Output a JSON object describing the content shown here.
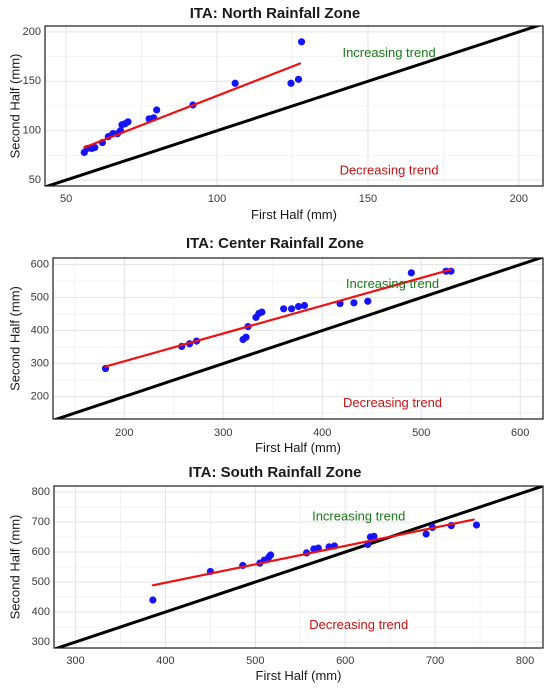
{
  "chart_data": [
    {
      "type": "scatter",
      "title": "ITA: North Rainfall Zone",
      "xlabel": "First Half (mm)",
      "ylabel": "Second Half (mm)",
      "xlim": [
        43,
        208
      ],
      "ylim": [
        44,
        206
      ],
      "xticks": [
        50,
        100,
        150,
        200
      ],
      "yticks": [
        50,
        100,
        150,
        200
      ],
      "grid": true,
      "points": {
        "x": [
          56,
          57,
          58.5,
          59.5,
          62,
          64,
          65.5,
          67,
          68,
          68.5,
          69.5,
          70.5,
          77.5,
          79,
          80,
          92,
          106,
          124.5,
          127,
          128
        ],
        "y": [
          78,
          82,
          82,
          83,
          88,
          94,
          97,
          97,
          100,
          106,
          107,
          109,
          112,
          113,
          121,
          126,
          148,
          148,
          152,
          190
        ],
        "color": "#1414ff"
      },
      "trend_line": {
        "x": [
          56,
          127.5
        ],
        "y": [
          83,
          168
        ],
        "color": "#ee1111"
      },
      "reference_line": {
        "x": [
          43,
          208
        ],
        "y": [
          43,
          208
        ],
        "color": "#000000"
      },
      "annotations": [
        {
          "text": "Increasing trend",
          "x": 157,
          "y": 178,
          "color": "#1a7a1a"
        },
        {
          "text": "Decreasing trend",
          "x": 157,
          "y": 59,
          "color": "#cc1111"
        }
      ]
    },
    {
      "type": "scatter",
      "title": "ITA: Center Rainfall Zone",
      "xlabel": "First Half (mm)",
      "ylabel": "Second Half (mm)",
      "xlim": [
        128,
        623
      ],
      "ylim": [
        132,
        620
      ],
      "xticks": [
        200,
        300,
        400,
        500,
        600
      ],
      "yticks": [
        200,
        300,
        400,
        500,
        600
      ],
      "grid": true,
      "points": {
        "x": [
          181,
          258,
          266,
          273,
          320,
          323,
          325,
          333,
          336,
          339,
          361,
          369,
          376,
          382,
          418,
          432,
          446,
          490,
          525,
          530
        ],
        "y": [
          285,
          352,
          360,
          368,
          373,
          380,
          412,
          440,
          452,
          456,
          466,
          466,
          473,
          476,
          482,
          484,
          489,
          575,
          580,
          580
        ],
        "color": "#1414ff"
      },
      "trend_line": {
        "x": [
          181,
          530
        ],
        "y": [
          291,
          585
        ],
        "color": "#ee1111"
      },
      "reference_line": {
        "x": [
          128,
          623
        ],
        "y": [
          128,
          623
        ],
        "color": "#000000"
      },
      "annotations": [
        {
          "text": "Increasing trend",
          "x": 471,
          "y": 539,
          "color": "#1a7a1a"
        },
        {
          "text": "Decreasing trend",
          "x": 471,
          "y": 179,
          "color": "#cc1111"
        }
      ]
    },
    {
      "type": "scatter",
      "title": "ITA: South Rainfall Zone",
      "xlabel": "First Half (mm)",
      "ylabel": "Second Half (mm)",
      "xlim": [
        276,
        820
      ],
      "ylim": [
        280,
        820
      ],
      "xticks": [
        300,
        400,
        500,
        600,
        700,
        800
      ],
      "yticks": [
        300,
        400,
        500,
        600,
        700,
        800
      ],
      "grid": true,
      "points": {
        "x": [
          386,
          450,
          486,
          505,
          510,
          515,
          517,
          557,
          565,
          570,
          582,
          588,
          625,
          628,
          632,
          690,
          697,
          718,
          746
        ],
        "y": [
          440,
          535,
          555,
          563,
          573,
          583,
          590,
          597,
          610,
          613,
          617,
          620,
          625,
          650,
          652,
          660,
          682,
          688,
          690
        ],
        "color": "#1414ff"
      },
      "trend_line": {
        "x": [
          386,
          743
        ],
        "y": [
          489,
          708
        ],
        "color": "#ee1111"
      },
      "reference_line": {
        "x": [
          276,
          820
        ],
        "y": [
          276,
          820
        ],
        "color": "#000000"
      },
      "annotations": [
        {
          "text": "Increasing trend",
          "x": 615,
          "y": 716,
          "color": "#1a7a1a"
        },
        {
          "text": "Decreasing trend",
          "x": 615,
          "y": 354,
          "color": "#cc1111"
        }
      ]
    }
  ]
}
